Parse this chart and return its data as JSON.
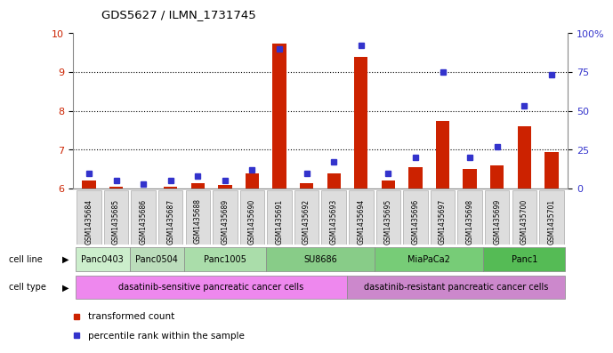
{
  "title": "GDS5627 / ILMN_1731745",
  "samples": [
    "GSM1435684",
    "GSM1435685",
    "GSM1435686",
    "GSM1435687",
    "GSM1435688",
    "GSM1435689",
    "GSM1435690",
    "GSM1435691",
    "GSM1435692",
    "GSM1435693",
    "GSM1435694",
    "GSM1435695",
    "GSM1435696",
    "GSM1435697",
    "GSM1435698",
    "GSM1435699",
    "GSM1435700",
    "GSM1435701"
  ],
  "transformed_count": [
    6.2,
    6.05,
    6.0,
    6.05,
    6.15,
    6.1,
    6.4,
    9.72,
    6.15,
    6.4,
    9.38,
    6.2,
    6.55,
    7.75,
    6.5,
    6.6,
    7.6,
    6.95
  ],
  "percentile_rank": [
    10,
    5,
    3,
    5,
    8,
    5,
    12,
    90,
    10,
    17,
    92,
    10,
    20,
    75,
    20,
    27,
    53,
    73
  ],
  "ylim_left": [
    6,
    10
  ],
  "ylim_right": [
    0,
    100
  ],
  "yticks_left": [
    6,
    7,
    8,
    9,
    10
  ],
  "yticks_right": [
    0,
    25,
    50,
    75,
    100
  ],
  "bar_color": "#cc2200",
  "dot_color": "#3333cc",
  "cell_lines": [
    {
      "label": "Panc0403",
      "start": 0,
      "end": 2,
      "color": "#cceecc"
    },
    {
      "label": "Panc0504",
      "start": 2,
      "end": 4,
      "color": "#bbddbb"
    },
    {
      "label": "Panc1005",
      "start": 4,
      "end": 7,
      "color": "#aaddaa"
    },
    {
      "label": "SU8686",
      "start": 7,
      "end": 11,
      "color": "#88cc88"
    },
    {
      "label": "MiaPaCa2",
      "start": 11,
      "end": 15,
      "color": "#77cc77"
    },
    {
      "label": "Panc1",
      "start": 15,
      "end": 18,
      "color": "#55bb55"
    }
  ],
  "cell_types": [
    {
      "label": "dasatinib-sensitive pancreatic cancer cells",
      "start": 0,
      "end": 10,
      "color": "#ee88ee"
    },
    {
      "label": "dasatinib-resistant pancreatic cancer cells",
      "start": 10,
      "end": 18,
      "color": "#cc88cc"
    }
  ],
  "legend_items": [
    {
      "label": "transformed count",
      "color": "#cc2200"
    },
    {
      "label": "percentile rank within the sample",
      "color": "#3333cc"
    }
  ],
  "grid_color": "#000000",
  "bg_color": "#ffffff",
  "axis_color_left": "#cc2200",
  "axis_color_right": "#3333cc",
  "bar_width": 0.5,
  "dot_size": 4
}
